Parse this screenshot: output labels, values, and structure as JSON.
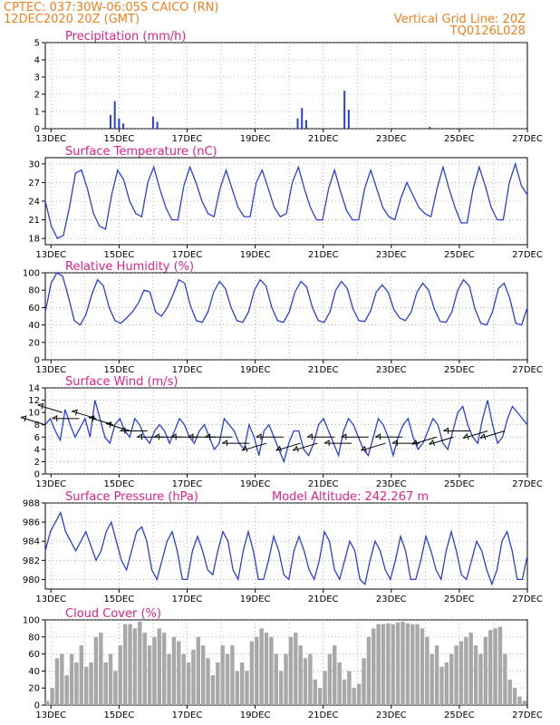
{
  "header": {
    "line1": "CPTEC:   037:30W-06:05S   CAICO (RN)",
    "line2": "12DEC2020 20Z (GMT)",
    "grid_note": "Vertical Grid Line: 20Z",
    "code": "TQ0126L028"
  },
  "colors": {
    "header": "#f08020",
    "title": "#e0208a",
    "series": "#2a3fd8",
    "cloud": "#a8a8a8"
  },
  "x_axis": {
    "ticks": [
      "13DEC",
      "15DEC",
      "17DEC",
      "19DEC",
      "21DEC",
      "23DEC",
      "25DEC",
      "27DEC"
    ],
    "start": "12DEC2020 20Z",
    "end": "27DEC2020 00Z"
  },
  "chart_data": [
    {
      "id": "precipitation",
      "type": "bar",
      "title": "Precipitation (mm/h)",
      "ylim": [
        0,
        5
      ],
      "yticks": [
        "0",
        "1",
        "2",
        "3",
        "4",
        "5"
      ],
      "grid": true,
      "x": [
        "14DEC 18Z",
        "14DEC 21Z",
        "15DEC 00Z",
        "15DEC 03Z",
        "16DEC 00Z",
        "16DEC 03Z",
        "20DEC 06Z",
        "20DEC 09Z",
        "20DEC 12Z",
        "21DEC 15Z",
        "21DEC 18Z",
        "24DEC 03Z"
      ],
      "values": [
        0.8,
        1.6,
        0.6,
        0.3,
        0.7,
        0.4,
        0.6,
        1.2,
        0.5,
        2.2,
        1.1,
        0.1
      ]
    },
    {
      "id": "temperature",
      "type": "line",
      "title": "Surface Temperature (nC)",
      "ylim": [
        17,
        31
      ],
      "yticks": [
        "18",
        "21",
        "24",
        "27",
        "30"
      ],
      "grid": true,
      "series": [
        {
          "values": [
            24,
            20,
            18,
            18.5,
            23,
            28.5,
            29,
            26,
            22,
            20,
            19.5,
            25,
            29,
            27.5,
            24,
            22,
            21.5,
            27,
            29.5,
            26,
            23,
            21,
            21,
            26.5,
            29.5,
            27,
            24,
            22,
            21.5,
            26,
            29,
            26,
            23,
            21.5,
            21.5,
            27,
            29,
            26,
            23,
            21.5,
            22,
            27,
            29.5,
            26,
            23,
            21,
            21,
            26,
            29,
            25.5,
            22.5,
            21,
            21,
            26,
            29,
            26,
            23,
            21.5,
            21,
            24.5,
            27,
            25,
            23,
            22,
            21.5,
            26,
            29.5,
            26,
            23,
            20.5,
            20.5,
            26,
            29.5,
            26.5,
            23,
            21,
            21,
            27,
            30,
            26.5,
            25
          ]
        }
      ]
    },
    {
      "id": "humidity",
      "type": "line",
      "title": "Relative Humidity (%)",
      "ylim": [
        0,
        100
      ],
      "yticks": [
        "0",
        "20",
        "40",
        "60",
        "80",
        "100"
      ],
      "grid": true,
      "series": [
        {
          "values": [
            55,
            88,
            100,
            96,
            72,
            45,
            40,
            52,
            75,
            92,
            85,
            60,
            45,
            42,
            48,
            55,
            65,
            80,
            78,
            55,
            50,
            60,
            75,
            92,
            88,
            62,
            45,
            43,
            55,
            78,
            90,
            82,
            60,
            45,
            43,
            55,
            80,
            92,
            85,
            60,
            45,
            43,
            55,
            78,
            90,
            84,
            60,
            45,
            43,
            55,
            80,
            90,
            82,
            58,
            45,
            44,
            56,
            78,
            86,
            78,
            58,
            48,
            45,
            55,
            78,
            88,
            80,
            58,
            44,
            43,
            55,
            80,
            92,
            85,
            58,
            42,
            40,
            55,
            82,
            88,
            70,
            42,
            40,
            60
          ]
        }
      ]
    },
    {
      "id": "wind",
      "type": "line",
      "title": "Surface Wind (m/s)",
      "ylim": [
        0,
        14
      ],
      "yticks": [
        "0",
        "2",
        "4",
        "6",
        "8",
        "10",
        "12",
        "14"
      ],
      "grid": true,
      "series": [
        {
          "values": [
            8,
            9,
            7,
            5.5,
            10.5,
            8,
            6,
            7.5,
            9,
            6,
            12,
            9,
            6,
            5,
            8,
            9,
            7,
            6,
            9,
            8,
            6,
            5,
            7,
            8,
            7,
            5,
            7,
            9,
            8,
            6,
            5,
            7,
            8,
            6,
            4,
            5,
            9,
            8,
            7,
            5,
            4,
            8,
            6,
            3,
            7,
            8,
            6,
            4,
            2,
            5,
            7,
            7,
            4,
            3,
            5,
            8,
            9,
            7,
            5,
            3,
            7,
            9,
            8,
            6,
            4,
            3,
            6,
            9,
            8,
            6,
            3,
            6,
            8,
            9,
            6,
            4,
            5,
            7,
            9,
            8,
            5,
            4,
            7,
            10,
            11,
            8,
            6,
            5,
            9,
            12,
            8,
            5,
            6,
            9,
            11,
            10,
            9,
            8
          ]
        }
      ],
      "wind_vectors": [
        {
          "x": "12DEC 20Z",
          "dir": "SE",
          "s": 8
        },
        {
          "x": "13DEC 08Z",
          "dir": "SE",
          "s": 10
        },
        {
          "x": "13DEC 20Z",
          "dir": "E",
          "s": 9
        },
        {
          "x": "14DEC 08Z",
          "dir": "SE",
          "s": 9
        },
        {
          "x": "14DEC 20Z",
          "dir": "SE",
          "s": 8
        },
        {
          "x": "15DEC 08Z",
          "dir": "SE",
          "s": 7
        },
        {
          "x": "15DEC 20Z",
          "dir": "E",
          "s": 7
        },
        {
          "x": "16DEC 08Z",
          "dir": "E",
          "s": 6
        },
        {
          "x": "16DEC 20Z",
          "dir": "E",
          "s": 6
        },
        {
          "x": "17DEC 08Z",
          "dir": "E",
          "s": 6
        },
        {
          "x": "17DEC 20Z",
          "dir": "E",
          "s": 6
        },
        {
          "x": "18DEC 08Z",
          "dir": "E",
          "s": 6
        },
        {
          "x": "18DEC 20Z",
          "dir": "E",
          "s": 5
        },
        {
          "x": "19DEC 08Z",
          "dir": "NE",
          "s": 5
        },
        {
          "x": "19DEC 20Z",
          "dir": "E",
          "s": 6
        },
        {
          "x": "20DEC 08Z",
          "dir": "NE",
          "s": 5
        },
        {
          "x": "20DEC 20Z",
          "dir": "NE",
          "s": 5
        },
        {
          "x": "21DEC 08Z",
          "dir": "E",
          "s": 6
        },
        {
          "x": "21DEC 20Z",
          "dir": "E",
          "s": 5
        },
        {
          "x": "22DEC 08Z",
          "dir": "E",
          "s": 6
        },
        {
          "x": "22DEC 20Z",
          "dir": "NE",
          "s": 5
        },
        {
          "x": "23DEC 08Z",
          "dir": "E",
          "s": 6
        },
        {
          "x": "23DEC 20Z",
          "dir": "E",
          "s": 5
        },
        {
          "x": "24DEC 08Z",
          "dir": "NE",
          "s": 6
        },
        {
          "x": "24DEC 20Z",
          "dir": "NE",
          "s": 6
        },
        {
          "x": "25DEC 08Z",
          "dir": "E",
          "s": 7
        },
        {
          "x": "25DEC 20Z",
          "dir": "NE",
          "s": 7
        },
        {
          "x": "26DEC 08Z",
          "dir": "NE",
          "s": 7
        }
      ]
    },
    {
      "id": "pressure",
      "type": "line",
      "title": "Surface Pressure (hPa)",
      "subtitle": "Model Altitude: 242.267 m",
      "ylim": [
        979,
        988
      ],
      "yticks": [
        "980",
        "982",
        "984",
        "986",
        "988"
      ],
      "grid": true,
      "series": [
        {
          "values": [
            983,
            985,
            986,
            987,
            985,
            984,
            983,
            984,
            985,
            983.5,
            982,
            983,
            985,
            986,
            984,
            982,
            981,
            983,
            985,
            985.5,
            984,
            981,
            980,
            982,
            984,
            985,
            983,
            980,
            980,
            983,
            984.5,
            983,
            981,
            980.5,
            983,
            985,
            984,
            981,
            980,
            983,
            985,
            983,
            980,
            980,
            982,
            984.5,
            983,
            980.5,
            980,
            983,
            984.5,
            983,
            981,
            980,
            982,
            985,
            984,
            981,
            980,
            982,
            984,
            983,
            980,
            979.5,
            982,
            984,
            983,
            981,
            980,
            982,
            984.5,
            983,
            980,
            980,
            982,
            984.5,
            983,
            981,
            980,
            983,
            985,
            983,
            980.5,
            980,
            982,
            984,
            983,
            981,
            979.5,
            981,
            984,
            985,
            983,
            980,
            980,
            982.5
          ]
        }
      ]
    },
    {
      "id": "cloud",
      "type": "area",
      "title": "Cloud Cover (%)",
      "ylim": [
        0,
        100
      ],
      "yticks": [
        "0",
        "20",
        "40",
        "60",
        "80",
        "100"
      ],
      "grid": true,
      "series": [
        {
          "values": [
            5,
            20,
            55,
            60,
            35,
            60,
            50,
            70,
            45,
            50,
            80,
            85,
            50,
            60,
            40,
            70,
            95,
            95,
            90,
            98,
            85,
            70,
            80,
            90,
            85,
            60,
            80,
            75,
            60,
            50,
            65,
            80,
            70,
            55,
            35,
            50,
            70,
            60,
            70,
            40,
            50,
            40,
            75,
            80,
            90,
            85,
            80,
            60,
            40,
            60,
            80,
            85,
            70,
            55,
            60,
            30,
            20,
            40,
            60,
            70,
            50,
            30,
            40,
            20,
            25,
            55,
            80,
            90,
            95,
            95,
            96,
            95,
            97,
            98,
            96,
            95,
            95,
            90,
            80,
            60,
            70,
            45,
            50,
            60,
            70,
            75,
            80,
            85,
            70,
            60,
            80,
            88,
            90,
            92,
            60,
            30,
            20,
            10,
            5
          ]
        }
      ]
    }
  ]
}
